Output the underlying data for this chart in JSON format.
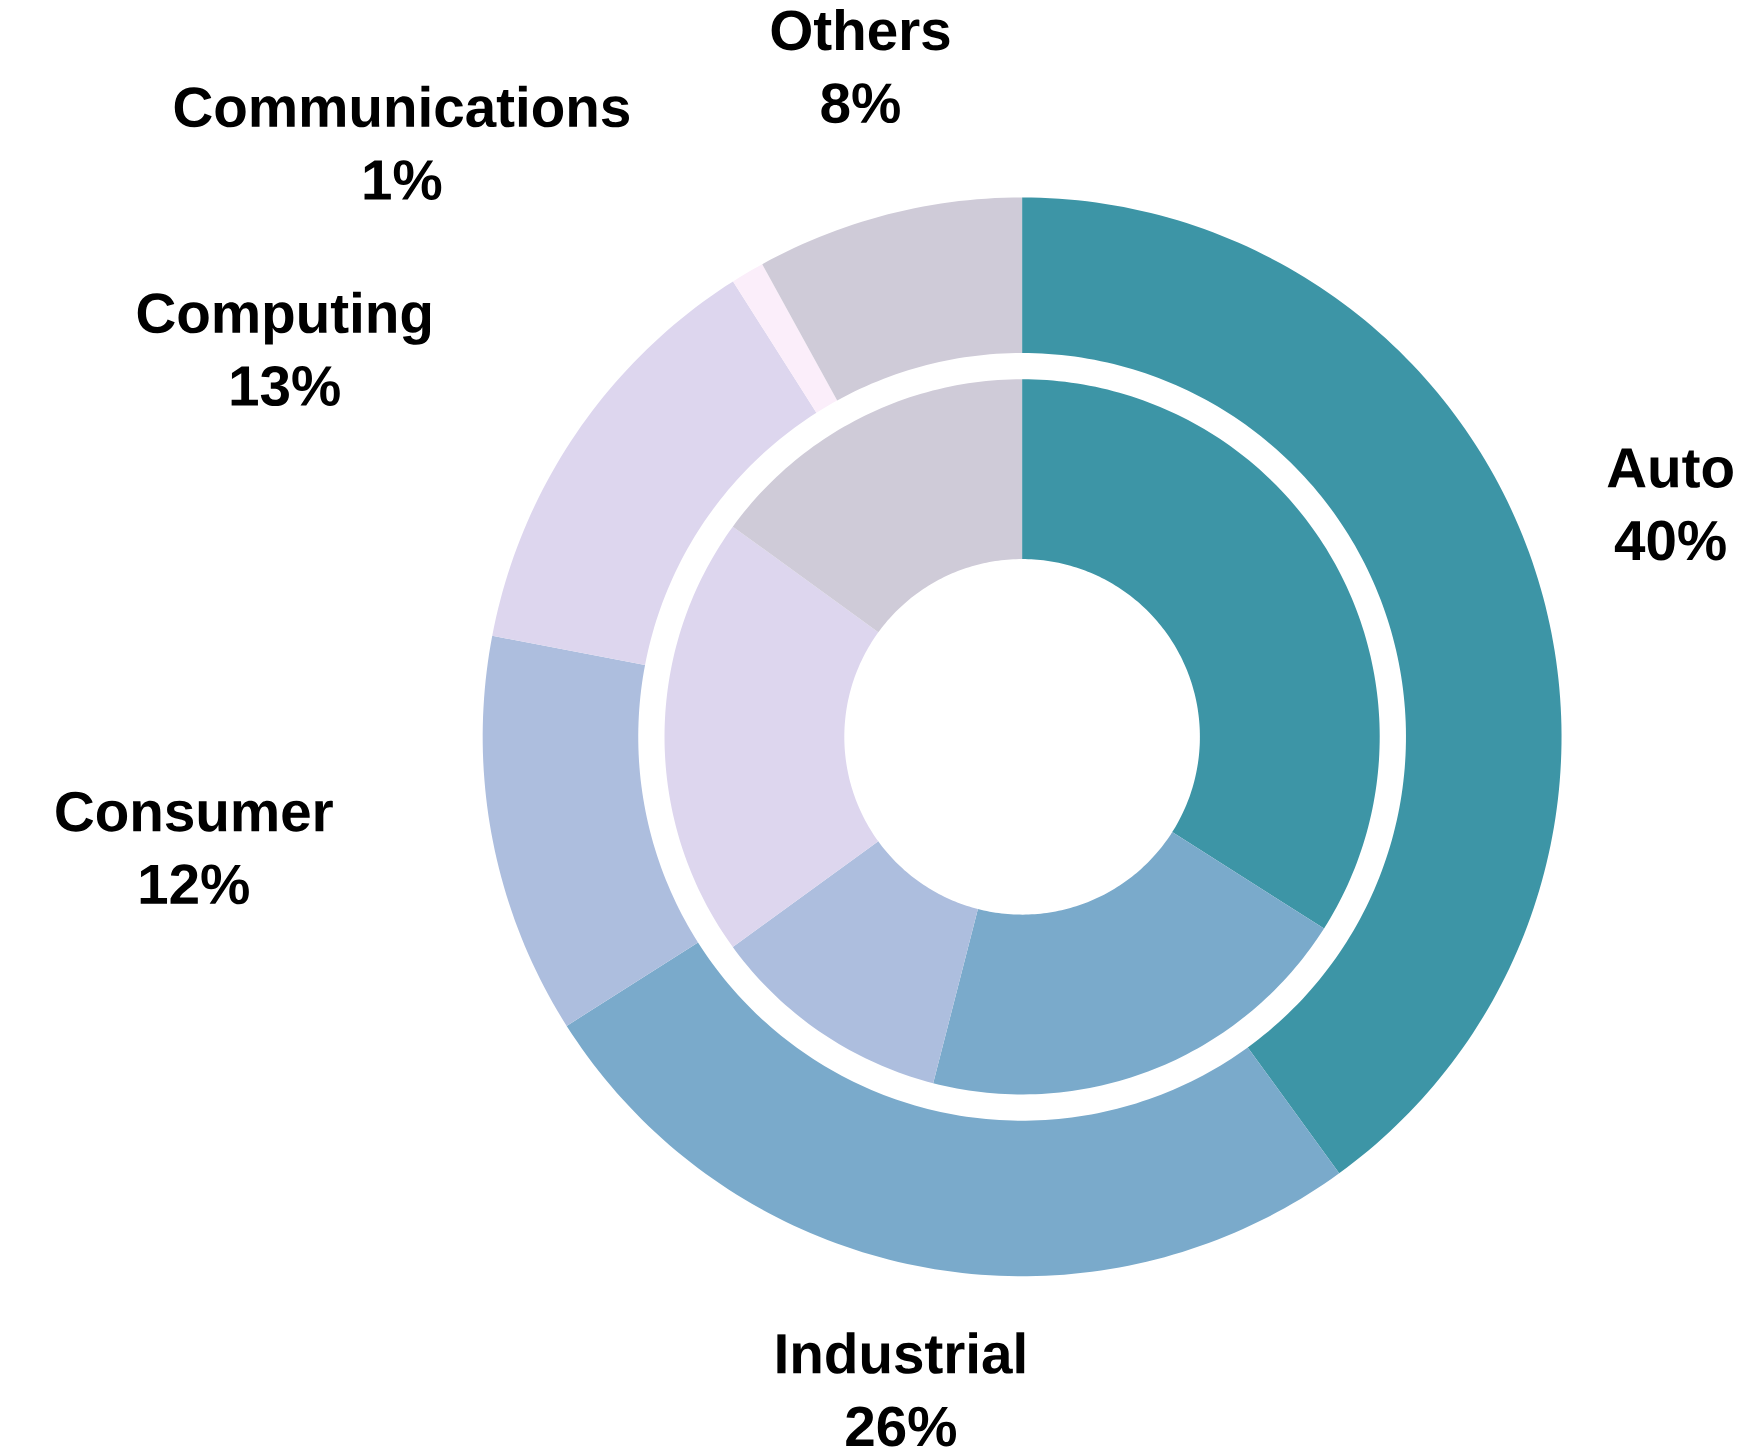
{
  "chart_data": {
    "type": "donut",
    "categories": [
      "Auto",
      "Industrial",
      "Consumer",
      "Computing",
      "Communications",
      "Others"
    ],
    "colors": [
      "#3d95a6",
      "#7aaacb",
      "#adbede",
      "#ddd6ee",
      "#fbeefa",
      "#cfcbd8"
    ],
    "series": [
      {
        "values": [
          40,
          26,
          12,
          13,
          1,
          8
        ],
        "value_labels": [
          "40%",
          "26%",
          "12%",
          "13%",
          "1%",
          "8%"
        ]
      },
      {
        "values": [
          34,
          20,
          11,
          20,
          null,
          15
        ]
      }
    ]
  }
}
